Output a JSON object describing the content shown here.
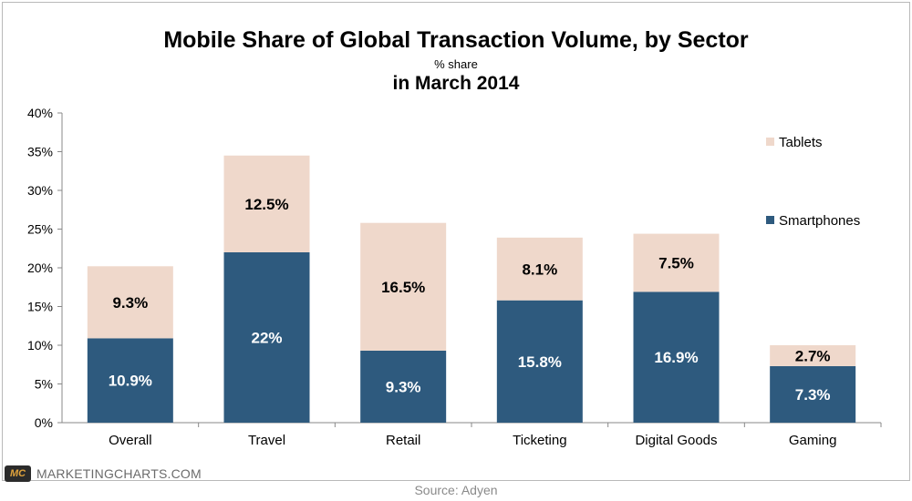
{
  "chart_data": {
    "type": "bar",
    "stacked": true,
    "title": "Mobile Share of Global Transaction Volume, by Sector",
    "subtitle": "% share",
    "subtitle2": "in March 2014",
    "categories": [
      "Overall",
      "Travel",
      "Retail",
      "Ticketing",
      "Digital Goods",
      "Gaming"
    ],
    "series": [
      {
        "name": "Smartphones",
        "color": "#2e5a7e",
        "values": [
          10.9,
          22,
          9.3,
          15.8,
          16.9,
          7.3
        ],
        "labels": [
          "10.9%",
          "22%",
          "9.3%",
          "15.8%",
          "16.9%",
          "7.3%"
        ]
      },
      {
        "name": "Tablets",
        "color": "#efd8cb",
        "values": [
          9.3,
          12.5,
          16.5,
          8.1,
          7.5,
          2.7
        ],
        "labels": [
          "9.3%",
          "12.5%",
          "16.5%",
          "8.1%",
          "7.5%",
          "2.7%"
        ]
      }
    ],
    "yticks": [
      "0%",
      "5%",
      "10%",
      "15%",
      "20%",
      "25%",
      "30%",
      "35%",
      "40%"
    ],
    "ylim": [
      0,
      40
    ],
    "xlabel": "",
    "ylabel": "",
    "legend_position": "right"
  },
  "footer": {
    "logo": "MC",
    "brand": "MARKETINGCHARTS.COM",
    "source": "Source: Adyen"
  }
}
